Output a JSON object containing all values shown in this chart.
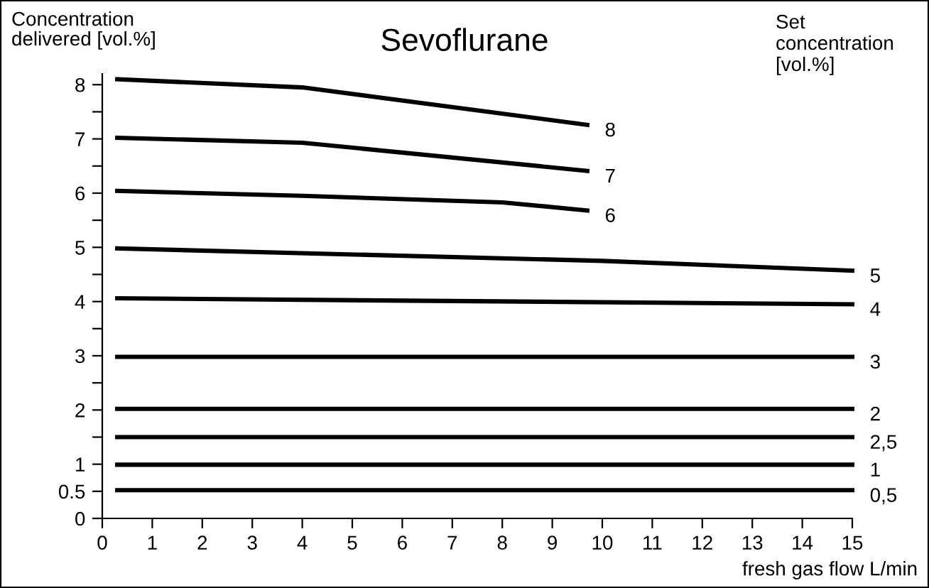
{
  "chart_data": {
    "type": "line",
    "title": "Sevoflurane",
    "ylabel": "Concentration\ndelivered [vol.%]",
    "xlabel": "fresh gas flow L/min",
    "annotations": [
      "Set\nconcentration\n[vol.%]"
    ],
    "xlim": [
      0,
      15
    ],
    "xticks": [
      0,
      1,
      2,
      3,
      4,
      5,
      6,
      7,
      8,
      9,
      10,
      11,
      12,
      13,
      14,
      15
    ],
    "ylim": [
      0,
      8.2
    ],
    "yticks": [
      0,
      0.5,
      1,
      {
        "value": 1.5,
        "label": null
      },
      2,
      {
        "value": 2.5,
        "label": null
      },
      3,
      {
        "value": 3.5,
        "label": null
      },
      4,
      {
        "value": 4.5,
        "label": null
      },
      5,
      {
        "value": 5.5,
        "label": null
      },
      6,
      {
        "value": 6.5,
        "label": null
      },
      7,
      {
        "value": 7.5,
        "label": null
      },
      8
    ],
    "grid": false,
    "legend": false,
    "marker": "none",
    "line_style": "solid",
    "series": [
      {
        "name": "8",
        "color": "#000000",
        "x": [
          0.3,
          4,
          9.7
        ],
        "values": [
          8.1,
          7.95,
          7.26
        ]
      },
      {
        "name": "7",
        "color": "#000000",
        "x": [
          0.3,
          4,
          9.7
        ],
        "values": [
          7.02,
          6.93,
          6.41
        ]
      },
      {
        "name": "6",
        "color": "#000000",
        "x": [
          0.3,
          4,
          8,
          9.7
        ],
        "values": [
          6.04,
          5.95,
          5.83,
          5.68
        ]
      },
      {
        "name": "5",
        "color": "#000000",
        "x": [
          0.3,
          10,
          15
        ],
        "values": [
          4.98,
          4.75,
          4.57
        ]
      },
      {
        "name": "4",
        "color": "#000000",
        "x": [
          0.3,
          15
        ],
        "values": [
          4.06,
          3.95
        ]
      },
      {
        "name": "3",
        "color": "#000000",
        "x": [
          0.3,
          15
        ],
        "values": [
          2.98,
          2.98
        ]
      },
      {
        "name": "2",
        "color": "#000000",
        "x": [
          0.3,
          15
        ],
        "values": [
          2.02,
          2.02
        ]
      },
      {
        "name": "2,5",
        "color": "#000000",
        "x": [
          0.3,
          15
        ],
        "values": [
          1.5,
          1.5
        ]
      },
      {
        "name": "1",
        "color": "#000000",
        "x": [
          0.3,
          15
        ],
        "values": [
          0.99,
          0.99
        ]
      },
      {
        "name": "0,5",
        "color": "#000000",
        "x": [
          0.3,
          15
        ],
        "values": [
          0.52,
          0.52
        ]
      }
    ]
  }
}
